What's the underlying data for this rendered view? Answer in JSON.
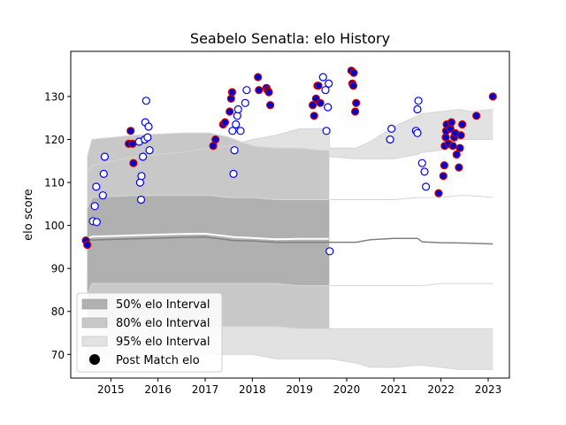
{
  "chart_data": {
    "type": "scatter",
    "title": "Seabelo Senatla: elo History",
    "xlabel": "",
    "ylabel": "elo score",
    "xlim": [
      2014.15,
      2023.45
    ],
    "ylim": [
      64.5,
      140.5
    ],
    "xticks": [
      "2015",
      "2016",
      "2017",
      "2018",
      "2019",
      "2020",
      "2021",
      "2022",
      "2023"
    ],
    "yticks": [
      "70",
      "80",
      "90",
      "100",
      "110",
      "120",
      "130"
    ],
    "grid": false,
    "legend_position": "lower-left",
    "legend": [
      {
        "label": "50% elo Interval",
        "swatch": "band50"
      },
      {
        "label": "80% elo Interval",
        "swatch": "band80"
      },
      {
        "label": "95% elo Interval",
        "swatch": "band95"
      },
      {
        "label": "Post Match elo",
        "swatch": "dot"
      }
    ],
    "colors": {
      "band50": "#b0b0b0",
      "band80": "#c8c8c8",
      "band95": "#e2e2e2",
      "mean_line": "#808080",
      "player_line": "#ffffff",
      "win_fill": "#0000cc",
      "win_edge": "#cc0000",
      "loss_fill": "#ffffff",
      "loss_edge": "#0000ee"
    },
    "bands": {
      "x": [
        2014.5,
        2014.6,
        2015.5,
        2016.5,
        2017.1,
        2017.5,
        2018.0,
        2018.5,
        2019.0,
        2019.5,
        2019.62,
        2019.64,
        2020.2,
        2020.5,
        2021.0,
        2021.5,
        2021.6,
        2022.0,
        2022.4,
        2022.6,
        2023.1
      ],
      "p95_hi": [
        112.0,
        114.0,
        116.0,
        117.0,
        118.0,
        118.5,
        120.0,
        121.0,
        122.5,
        122.5,
        122.5,
        118.0,
        118.0,
        119.5,
        123.0,
        125.5,
        126.0,
        126.5,
        127.0,
        126.5,
        127.0
      ],
      "p80_hi": [
        116.0,
        120.0,
        121.0,
        121.5,
        121.5,
        120.5,
        118.5,
        118.0,
        118.0,
        117.5,
        117.5,
        116.0,
        115.5,
        115.5,
        115.5,
        116.5,
        117.0,
        117.5,
        120.0,
        120.0,
        120.0
      ],
      "p50_hi": [
        104.0,
        106.5,
        107.0,
        107.0,
        107.0,
        106.5,
        106.5,
        106.0,
        106.0,
        106.0,
        106.0,
        106.0,
        106.0,
        106.0,
        106.0,
        106.5,
        106.5,
        106.5,
        107.0,
        107.0,
        106.5
      ],
      "p50_lo": [
        84.0,
        86.5,
        86.5,
        86.5,
        86.5,
        86.5,
        86.5,
        86.5,
        86.0,
        86.0,
        86.0,
        86.0,
        86.0,
        86.0,
        86.0,
        86.0,
        86.0,
        86.5,
        86.5,
        86.5,
        86.5
      ],
      "p80_lo": [
        78.0,
        76.5,
        76.5,
        76.5,
        76.5,
        76.5,
        76.5,
        76.5,
        76.0,
        76.0,
        76.0,
        76.0,
        76.0,
        76.0,
        76.0,
        76.0,
        76.0,
        76.0,
        76.0,
        76.0,
        76.0
      ],
      "p95_lo": [
        66.0,
        69.0,
        70.0,
        70.0,
        70.0,
        70.0,
        70.0,
        69.0,
        69.0,
        69.0,
        69.0,
        69.0,
        68.0,
        67.0,
        67.0,
        67.5,
        67.5,
        67.0,
        66.5,
        66.5,
        66.5
      ]
    },
    "shaded_cutoff": 2019.63,
    "mean_line": {
      "x": [
        2014.5,
        2014.6,
        2015.5,
        2016.5,
        2017.0,
        2017.6,
        2018.0,
        2018.5,
        2019.0,
        2019.5,
        2020.2,
        2020.5,
        2021.0,
        2021.5,
        2021.6,
        2022.0,
        2022.5,
        2023.1
      ],
      "y": [
        96.8,
        96.6,
        96.9,
        97.2,
        97.3,
        96.5,
        96.4,
        96.1,
        96.1,
        96.1,
        96.1,
        96.7,
        97.0,
        97.0,
        96.2,
        96.0,
        95.9,
        95.7
      ]
    },
    "player_line": {
      "x": [
        2014.5,
        2014.6,
        2015.5,
        2016.5,
        2017.0,
        2017.6,
        2018.0,
        2018.5,
        2019.0,
        2019.62
      ],
      "y": [
        97.0,
        97.4,
        97.7,
        98.0,
        98.1,
        97.3,
        97.1,
        96.8,
        96.9,
        96.9
      ]
    },
    "wins": [
      {
        "x": 2014.47,
        "y": 96.5
      },
      {
        "x": 2014.5,
        "y": 95.5
      },
      {
        "x": 2015.38,
        "y": 119.0
      },
      {
        "x": 2015.42,
        "y": 122.0
      },
      {
        "x": 2015.46,
        "y": 119.0
      },
      {
        "x": 2015.48,
        "y": 114.5
      },
      {
        "x": 2017.17,
        "y": 118.5
      },
      {
        "x": 2017.22,
        "y": 120.0
      },
      {
        "x": 2017.38,
        "y": 123.5
      },
      {
        "x": 2017.42,
        "y": 124.0
      },
      {
        "x": 2017.52,
        "y": 126.5
      },
      {
        "x": 2017.55,
        "y": 129.5
      },
      {
        "x": 2017.57,
        "y": 131.0
      },
      {
        "x": 2018.12,
        "y": 134.5
      },
      {
        "x": 2018.14,
        "y": 131.5
      },
      {
        "x": 2018.3,
        "y": 132.0
      },
      {
        "x": 2018.32,
        "y": 131.5
      },
      {
        "x": 2018.35,
        "y": 131.0
      },
      {
        "x": 2018.38,
        "y": 128.0
      },
      {
        "x": 2019.28,
        "y": 128.0
      },
      {
        "x": 2019.31,
        "y": 125.5
      },
      {
        "x": 2019.35,
        "y": 129.5
      },
      {
        "x": 2019.38,
        "y": 132.5
      },
      {
        "x": 2019.4,
        "y": 132.5
      },
      {
        "x": 2019.44,
        "y": 128.5
      },
      {
        "x": 2020.1,
        "y": 136.0
      },
      {
        "x": 2020.12,
        "y": 133.0
      },
      {
        "x": 2020.14,
        "y": 132.5
      },
      {
        "x": 2020.15,
        "y": 135.5
      },
      {
        "x": 2020.18,
        "y": 126.5
      },
      {
        "x": 2020.2,
        "y": 128.5
      },
      {
        "x": 2021.95,
        "y": 107.5
      },
      {
        "x": 2022.05,
        "y": 111.5
      },
      {
        "x": 2022.07,
        "y": 114.0
      },
      {
        "x": 2022.08,
        "y": 118.5
      },
      {
        "x": 2022.1,
        "y": 120.5
      },
      {
        "x": 2022.11,
        "y": 122.0
      },
      {
        "x": 2022.12,
        "y": 123.5
      },
      {
        "x": 2022.16,
        "y": 119.0
      },
      {
        "x": 2022.2,
        "y": 122.5
      },
      {
        "x": 2022.22,
        "y": 124.0
      },
      {
        "x": 2022.25,
        "y": 118.5
      },
      {
        "x": 2022.28,
        "y": 120.5
      },
      {
        "x": 2022.3,
        "y": 121.5
      },
      {
        "x": 2022.33,
        "y": 116.5
      },
      {
        "x": 2022.38,
        "y": 113.5
      },
      {
        "x": 2022.4,
        "y": 118.0
      },
      {
        "x": 2022.42,
        "y": 121.0
      },
      {
        "x": 2022.45,
        "y": 123.5
      },
      {
        "x": 2022.75,
        "y": 125.5
      },
      {
        "x": 2023.1,
        "y": 130.0
      }
    ],
    "losses": [
      {
        "x": 2014.62,
        "y": 101.0
      },
      {
        "x": 2014.66,
        "y": 104.5
      },
      {
        "x": 2014.69,
        "y": 109.0
      },
      {
        "x": 2014.7,
        "y": 100.8
      },
      {
        "x": 2014.83,
        "y": 107.0
      },
      {
        "x": 2014.85,
        "y": 112.0
      },
      {
        "x": 2014.87,
        "y": 116.0
      },
      {
        "x": 2015.6,
        "y": 119.5
      },
      {
        "x": 2015.62,
        "y": 110.0
      },
      {
        "x": 2015.64,
        "y": 106.0
      },
      {
        "x": 2015.65,
        "y": 111.5
      },
      {
        "x": 2015.68,
        "y": 116.0
      },
      {
        "x": 2015.72,
        "y": 120.0
      },
      {
        "x": 2015.73,
        "y": 124.0
      },
      {
        "x": 2015.75,
        "y": 129.0
      },
      {
        "x": 2015.78,
        "y": 120.5
      },
      {
        "x": 2015.8,
        "y": 123.0
      },
      {
        "x": 2015.82,
        "y": 117.5
      },
      {
        "x": 2017.58,
        "y": 122.0
      },
      {
        "x": 2017.6,
        "y": 112.0
      },
      {
        "x": 2017.62,
        "y": 117.5
      },
      {
        "x": 2017.65,
        "y": 123.5
      },
      {
        "x": 2017.68,
        "y": 125.5
      },
      {
        "x": 2017.7,
        "y": 127.0
      },
      {
        "x": 2017.75,
        "y": 122.0
      },
      {
        "x": 2017.85,
        "y": 128.5
      },
      {
        "x": 2017.88,
        "y": 131.5
      },
      {
        "x": 2019.5,
        "y": 134.5
      },
      {
        "x": 2019.55,
        "y": 131.5
      },
      {
        "x": 2019.57,
        "y": 122.0
      },
      {
        "x": 2019.6,
        "y": 127.5
      },
      {
        "x": 2019.62,
        "y": 133.0
      },
      {
        "x": 2019.64,
        "y": 94.0
      },
      {
        "x": 2020.92,
        "y": 120.0
      },
      {
        "x": 2020.95,
        "y": 122.5
      },
      {
        "x": 2021.47,
        "y": 122.0
      },
      {
        "x": 2021.5,
        "y": 121.5
      },
      {
        "x": 2021.5,
        "y": 127.0
      },
      {
        "x": 2021.52,
        "y": 129.0
      },
      {
        "x": 2021.6,
        "y": 114.5
      },
      {
        "x": 2021.65,
        "y": 112.5
      },
      {
        "x": 2021.68,
        "y": 109.0
      }
    ]
  }
}
